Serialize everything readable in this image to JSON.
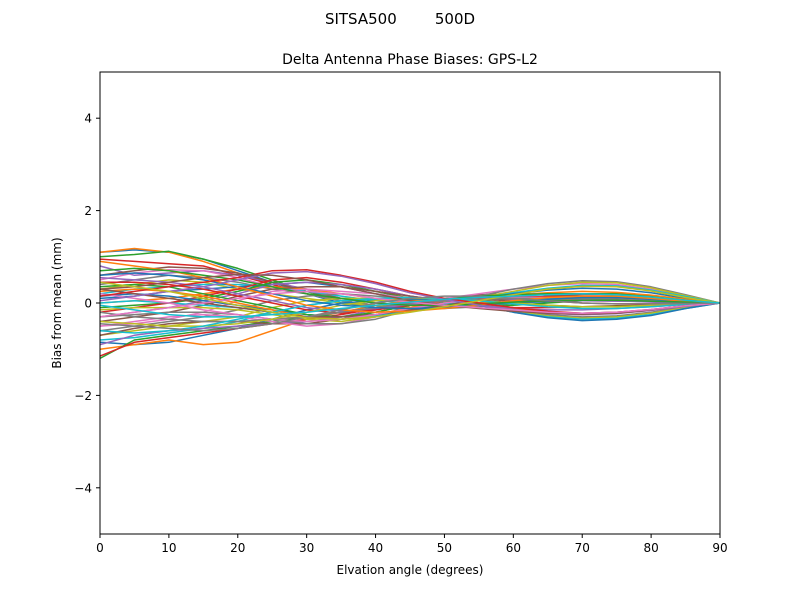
{
  "figure": {
    "suptitle": "SITSA500        500D"
  },
  "chart_data": {
    "type": "line",
    "title": "Delta Antenna Phase Biases: GPS-L2",
    "xlabel": "Elvation angle (degrees)",
    "ylabel": "Bias from mean (mm)",
    "xlim": [
      0,
      90
    ],
    "ylim": [
      -5,
      5
    ],
    "xticks": [
      0,
      10,
      20,
      30,
      40,
      50,
      60,
      70,
      80,
      90
    ],
    "yticks": [
      -4,
      -2,
      0,
      2,
      4
    ],
    "xtick_labels": [
      "0",
      "10",
      "20",
      "30",
      "40",
      "50",
      "60",
      "70",
      "80",
      "90"
    ],
    "ytick_labels": [
      "−4",
      "−2",
      "0",
      "2",
      "4"
    ],
    "grid": false,
    "legend": "none",
    "x": [
      0,
      5,
      10,
      15,
      20,
      25,
      30,
      35,
      40,
      45,
      50,
      55,
      60,
      65,
      70,
      75,
      80,
      85,
      90
    ],
    "colors": [
      "#1f77b4",
      "#ff7f0e",
      "#2ca02c",
      "#d62728",
      "#9467bd",
      "#8c564b",
      "#e377c2",
      "#7f7f7f",
      "#bcbd22",
      "#17becf"
    ],
    "series": [
      {
        "values": [
          1.1,
          1.15,
          1.1,
          0.95,
          0.7,
          0.45,
          0.2,
          0.0,
          -0.1,
          -0.15,
          -0.1,
          -0.05,
          0.05,
          0.15,
          0.2,
          0.2,
          0.15,
          0.07,
          0.0
        ]
      },
      {
        "values": [
          1.1,
          1.18,
          1.1,
          0.9,
          0.65,
          0.4,
          0.2,
          0.05,
          -0.05,
          -0.1,
          -0.1,
          -0.05,
          0.05,
          0.15,
          0.2,
          0.2,
          0.15,
          0.07,
          0.0
        ]
      },
      {
        "values": [
          1.0,
          1.05,
          1.12,
          0.95,
          0.75,
          0.5,
          0.25,
          0.05,
          -0.05,
          -0.1,
          -0.1,
          -0.05,
          0.05,
          0.15,
          0.2,
          0.2,
          0.15,
          0.07,
          0.0
        ]
      },
      {
        "values": [
          0.95,
          0.9,
          0.85,
          0.8,
          0.6,
          0.4,
          0.2,
          0.05,
          -0.05,
          -0.1,
          -0.1,
          -0.05,
          0.05,
          0.12,
          0.18,
          0.18,
          0.12,
          0.05,
          0.0
        ]
      },
      {
        "values": [
          0.8,
          0.6,
          0.65,
          0.7,
          0.6,
          0.45,
          0.3,
          0.1,
          0.0,
          -0.05,
          -0.08,
          -0.05,
          0.05,
          0.12,
          0.16,
          0.16,
          0.1,
          0.05,
          0.0
        ]
      },
      {
        "values": [
          0.6,
          0.7,
          0.78,
          0.75,
          0.65,
          0.45,
          0.25,
          0.1,
          0.0,
          -0.05,
          -0.05,
          0.0,
          0.08,
          0.15,
          0.18,
          0.17,
          0.12,
          0.05,
          0.0
        ]
      },
      {
        "values": [
          0.5,
          0.65,
          0.72,
          0.7,
          0.55,
          0.35,
          0.2,
          0.05,
          -0.05,
          -0.1,
          -0.1,
          -0.05,
          0.05,
          0.12,
          0.16,
          0.16,
          0.1,
          0.05,
          0.0
        ]
      },
      {
        "values": [
          0.4,
          0.5,
          0.6,
          0.55,
          0.45,
          0.3,
          0.2,
          0.05,
          -0.05,
          -0.1,
          -0.12,
          -0.08,
          0.0,
          0.08,
          0.12,
          0.12,
          0.08,
          0.03,
          0.0
        ]
      },
      {
        "values": [
          0.3,
          0.4,
          0.5,
          0.45,
          0.3,
          0.2,
          0.1,
          0.0,
          -0.05,
          -0.1,
          -0.1,
          -0.05,
          0.02,
          0.1,
          0.15,
          0.14,
          0.1,
          0.04,
          0.0
        ]
      },
      {
        "values": [
          0.2,
          0.3,
          0.35,
          0.4,
          0.4,
          0.35,
          0.25,
          0.15,
          0.05,
          0.0,
          -0.05,
          -0.05,
          0.0,
          0.05,
          0.1,
          0.1,
          0.08,
          0.03,
          0.0
        ]
      },
      {
        "values": [
          0.1,
          0.15,
          0.25,
          0.3,
          0.35,
          0.4,
          0.45,
          0.35,
          0.2,
          0.1,
          0.05,
          0.0,
          0.0,
          0.03,
          0.05,
          0.05,
          0.03,
          0.01,
          0.0
        ]
      },
      {
        "values": [
          0.0,
          0.05,
          0.1,
          0.2,
          0.3,
          0.35,
          0.3,
          0.2,
          0.1,
          0.05,
          0.0,
          0.0,
          0.02,
          0.05,
          0.08,
          0.08,
          0.05,
          0.02,
          0.0
        ]
      },
      {
        "values": [
          -0.1,
          -0.05,
          0.0,
          0.1,
          0.25,
          0.45,
          0.5,
          0.4,
          0.25,
          0.1,
          0.0,
          -0.05,
          -0.05,
          0.0,
          0.05,
          0.05,
          0.03,
          0.01,
          0.0
        ]
      },
      {
        "values": [
          -0.2,
          -0.1,
          0.0,
          0.15,
          0.3,
          0.5,
          0.55,
          0.45,
          0.3,
          0.15,
          0.05,
          -0.05,
          -0.1,
          -0.1,
          -0.08,
          -0.06,
          -0.04,
          -0.02,
          0.0
        ]
      },
      {
        "values": [
          -0.3,
          -0.2,
          -0.1,
          0.05,
          0.2,
          0.4,
          0.45,
          0.4,
          0.3,
          0.15,
          0.05,
          -0.05,
          -0.12,
          -0.15,
          -0.15,
          -0.12,
          -0.08,
          -0.03,
          0.0
        ]
      },
      {
        "values": [
          -0.4,
          -0.3,
          -0.2,
          -0.05,
          0.15,
          0.3,
          0.35,
          0.35,
          0.25,
          0.15,
          0.05,
          -0.05,
          -0.15,
          -0.2,
          -0.22,
          -0.2,
          -0.15,
          -0.06,
          0.0
        ]
      },
      {
        "values": [
          -0.5,
          -0.45,
          -0.35,
          -0.2,
          0.05,
          0.25,
          0.3,
          0.25,
          0.2,
          0.1,
          0.05,
          -0.05,
          -0.15,
          -0.22,
          -0.25,
          -0.22,
          -0.16,
          -0.07,
          0.0
        ]
      },
      {
        "values": [
          -0.6,
          -0.5,
          -0.4,
          -0.3,
          -0.15,
          0.05,
          0.15,
          0.2,
          0.15,
          0.1,
          0.05,
          -0.05,
          -0.15,
          -0.25,
          -0.3,
          -0.28,
          -0.2,
          -0.08,
          0.0
        ]
      },
      {
        "values": [
          -0.7,
          -0.6,
          -0.5,
          -0.4,
          -0.3,
          -0.1,
          0.05,
          0.1,
          0.1,
          0.08,
          0.04,
          -0.05,
          -0.18,
          -0.28,
          -0.33,
          -0.3,
          -0.22,
          -0.1,
          0.0
        ]
      },
      {
        "values": [
          -0.8,
          -0.75,
          -0.65,
          -0.55,
          -0.4,
          -0.2,
          -0.05,
          0.05,
          0.08,
          0.08,
          0.05,
          -0.05,
          -0.2,
          -0.3,
          -0.35,
          -0.33,
          -0.25,
          -0.12,
          0.0
        ]
      },
      {
        "values": [
          -0.85,
          -0.9,
          -0.85,
          -0.7,
          -0.55,
          -0.35,
          -0.15,
          0.0,
          0.05,
          0.08,
          0.05,
          -0.05,
          -0.2,
          -0.32,
          -0.38,
          -0.35,
          -0.27,
          -0.12,
          0.0
        ]
      },
      {
        "values": [
          -1.0,
          -0.9,
          -0.8,
          -0.9,
          -0.85,
          -0.6,
          -0.35,
          -0.2,
          -0.05,
          0.05,
          0.05,
          0.0,
          -0.1,
          -0.2,
          -0.25,
          -0.22,
          -0.15,
          -0.06,
          0.0
        ]
      },
      {
        "values": [
          -1.2,
          -0.8,
          -0.7,
          -0.6,
          -0.5,
          -0.4,
          -0.3,
          -0.2,
          -0.1,
          0.0,
          0.05,
          0.05,
          0.0,
          -0.05,
          -0.08,
          -0.07,
          -0.05,
          -0.02,
          0.0
        ]
      },
      {
        "values": [
          -1.15,
          -0.85,
          -0.75,
          -0.65,
          -0.55,
          -0.45,
          -0.35,
          -0.25,
          -0.12,
          0.0,
          0.08,
          0.12,
          0.1,
          0.05,
          0.0,
          -0.02,
          -0.02,
          -0.01,
          0.0
        ]
      },
      {
        "values": [
          -0.9,
          -0.7,
          -0.6,
          -0.55,
          -0.5,
          -0.45,
          -0.4,
          -0.3,
          -0.15,
          0.0,
          0.1,
          0.15,
          0.15,
          0.12,
          0.08,
          0.05,
          0.02,
          0.0,
          0.0
        ]
      },
      {
        "values": [
          -0.7,
          -0.55,
          -0.45,
          -0.4,
          -0.4,
          -0.45,
          -0.45,
          -0.35,
          -0.2,
          -0.05,
          0.1,
          0.18,
          0.2,
          0.2,
          0.15,
          0.1,
          0.05,
          0.02,
          0.0
        ]
      },
      {
        "values": [
          -0.5,
          -0.4,
          -0.3,
          -0.25,
          -0.3,
          -0.4,
          -0.5,
          -0.45,
          -0.3,
          -0.1,
          0.1,
          0.2,
          0.3,
          0.38,
          0.42,
          0.4,
          0.3,
          0.15,
          0.0
        ]
      },
      {
        "values": [
          -0.3,
          -0.25,
          -0.2,
          -0.2,
          -0.25,
          -0.35,
          -0.45,
          -0.45,
          -0.35,
          -0.15,
          0.05,
          0.15,
          0.3,
          0.42,
          0.48,
          0.46,
          0.35,
          0.18,
          0.0
        ]
      },
      {
        "values": [
          -0.15,
          -0.1,
          -0.1,
          -0.1,
          -0.15,
          -0.25,
          -0.35,
          -0.4,
          -0.3,
          -0.15,
          0.0,
          0.12,
          0.25,
          0.38,
          0.45,
          0.44,
          0.33,
          0.16,
          0.0
        ]
      },
      {
        "values": [
          0.0,
          0.05,
          0.0,
          -0.05,
          -0.1,
          -0.2,
          -0.3,
          -0.35,
          -0.28,
          -0.15,
          -0.02,
          0.1,
          0.22,
          0.32,
          0.38,
          0.37,
          0.28,
          0.14,
          0.0
        ]
      },
      {
        "values": [
          0.15,
          0.2,
          0.15,
          0.05,
          -0.05,
          -0.15,
          -0.25,
          -0.3,
          -0.25,
          -0.12,
          0.0,
          0.1,
          0.2,
          0.28,
          0.32,
          0.3,
          0.22,
          0.1,
          0.0
        ]
      },
      {
        "values": [
          0.25,
          0.3,
          0.25,
          0.15,
          0.0,
          -0.15,
          -0.3,
          -0.35,
          -0.25,
          -0.1,
          0.05,
          0.12,
          0.18,
          0.22,
          0.25,
          0.23,
          0.17,
          0.08,
          0.0
        ]
      },
      {
        "values": [
          0.35,
          0.4,
          0.35,
          0.2,
          0.05,
          -0.1,
          -0.25,
          -0.3,
          -0.2,
          -0.05,
          0.08,
          0.15,
          0.18,
          0.2,
          0.2,
          0.18,
          0.13,
          0.06,
          0.0
        ]
      },
      {
        "values": [
          0.45,
          0.45,
          0.4,
          0.3,
          0.15,
          0.0,
          -0.15,
          -0.22,
          -0.15,
          -0.05,
          0.05,
          0.1,
          0.12,
          0.14,
          0.14,
          0.12,
          0.08,
          0.04,
          0.0
        ]
      },
      {
        "values": [
          0.55,
          0.5,
          0.45,
          0.35,
          0.2,
          0.05,
          -0.1,
          -0.18,
          -0.12,
          -0.03,
          0.05,
          0.08,
          0.08,
          0.06,
          0.05,
          0.04,
          0.03,
          0.01,
          0.0
        ]
      },
      {
        "values": [
          0.3,
          0.2,
          0.1,
          0.0,
          -0.1,
          -0.2,
          -0.3,
          -0.3,
          -0.25,
          -0.15,
          -0.05,
          0.05,
          0.1,
          0.12,
          0.12,
          0.1,
          0.07,
          0.03,
          0.0
        ]
      },
      {
        "values": [
          0.2,
          0.1,
          0.0,
          -0.15,
          -0.25,
          -0.35,
          -0.4,
          -0.35,
          -0.25,
          -0.12,
          0.0,
          0.08,
          0.12,
          0.12,
          0.1,
          0.08,
          0.05,
          0.02,
          0.0
        ]
      },
      {
        "values": [
          -0.2,
          -0.3,
          -0.35,
          -0.4,
          -0.4,
          -0.35,
          -0.3,
          -0.2,
          -0.1,
          0.0,
          0.05,
          0.08,
          0.1,
          0.1,
          0.1,
          0.08,
          0.05,
          0.02,
          0.0
        ]
      },
      {
        "values": [
          -0.4,
          -0.45,
          -0.5,
          -0.5,
          -0.45,
          -0.35,
          -0.2,
          -0.05,
          0.05,
          0.1,
          0.1,
          0.05,
          0.0,
          -0.05,
          -0.08,
          -0.08,
          -0.05,
          -0.02,
          0.0
        ]
      },
      {
        "values": [
          -0.6,
          -0.65,
          -0.6,
          -0.5,
          -0.35,
          -0.2,
          -0.05,
          0.05,
          0.1,
          0.12,
          0.1,
          0.05,
          -0.02,
          -0.08,
          -0.12,
          -0.12,
          -0.08,
          -0.03,
          0.0
        ]
      },
      {
        "values": [
          0.6,
          0.65,
          0.6,
          0.5,
          0.35,
          0.2,
          0.05,
          -0.05,
          -0.1,
          -0.12,
          -0.1,
          -0.05,
          0.02,
          0.08,
          0.12,
          0.12,
          0.08,
          0.03,
          0.0
        ]
      },
      {
        "values": [
          0.9,
          0.8,
          0.7,
          0.55,
          0.35,
          0.15,
          -0.05,
          -0.15,
          -0.2,
          -0.18,
          -0.12,
          -0.05,
          0.05,
          0.12,
          0.15,
          0.15,
          0.1,
          0.04,
          0.0
        ]
      },
      {
        "values": [
          0.7,
          0.75,
          0.7,
          0.6,
          0.5,
          0.35,
          0.2,
          0.1,
          0.0,
          -0.05,
          -0.05,
          -0.02,
          0.02,
          0.05,
          0.06,
          0.06,
          0.04,
          0.02,
          0.0
        ]
      },
      {
        "values": [
          0.15,
          0.25,
          0.35,
          0.45,
          0.55,
          0.7,
          0.72,
          0.6,
          0.45,
          0.25,
          0.1,
          0.0,
          -0.1,
          -0.18,
          -0.22,
          -0.2,
          -0.14,
          -0.06,
          0.0
        ]
      },
      {
        "values": [
          0.05,
          0.15,
          0.25,
          0.35,
          0.5,
          0.65,
          0.68,
          0.58,
          0.42,
          0.22,
          0.08,
          -0.05,
          -0.15,
          -0.22,
          -0.25,
          -0.23,
          -0.16,
          -0.07,
          0.0
        ]
      },
      {
        "values": [
          0.3,
          0.35,
          0.45,
          0.55,
          0.62,
          0.6,
          0.5,
          0.35,
          0.2,
          0.05,
          -0.05,
          -0.12,
          -0.18,
          -0.22,
          -0.24,
          -0.22,
          -0.15,
          -0.06,
          0.0
        ]
      },
      {
        "values": [
          -0.3,
          -0.2,
          -0.1,
          0.0,
          0.1,
          0.2,
          0.25,
          0.2,
          0.1,
          0.02,
          -0.05,
          -0.1,
          -0.15,
          -0.2,
          -0.22,
          -0.2,
          -0.14,
          -0.06,
          0.0
        ]
      },
      {
        "values": [
          -0.45,
          -0.5,
          -0.55,
          -0.6,
          -0.55,
          -0.45,
          -0.3,
          -0.15,
          0.0,
          0.1,
          0.15,
          0.15,
          0.1,
          0.05,
          0.0,
          -0.02,
          -0.02,
          -0.01,
          0.0
        ]
      },
      {
        "values": [
          0.45,
          0.35,
          0.25,
          0.1,
          -0.05,
          -0.2,
          -0.32,
          -0.35,
          -0.3,
          -0.2,
          -0.08,
          0.05,
          0.18,
          0.3,
          0.36,
          0.35,
          0.26,
          0.12,
          0.0
        ]
      },
      {
        "values": [
          -0.05,
          -0.15,
          -0.25,
          -0.3,
          -0.3,
          -0.25,
          -0.2,
          -0.12,
          -0.05,
          0.02,
          0.08,
          0.12,
          0.15,
          0.18,
          0.2,
          0.18,
          0.13,
          0.06,
          0.0
        ]
      }
    ]
  }
}
